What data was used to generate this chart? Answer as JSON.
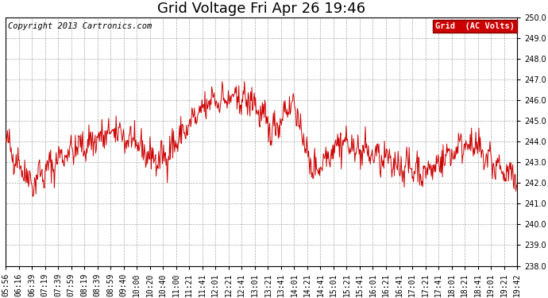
{
  "title": "Grid Voltage Fri Apr 26 19:46",
  "copyright": "Copyright 2013 Cartronics.com",
  "legend_label": "Grid  (AC Volts)",
  "legend_bg": "#cc0000",
  "legend_text_color": "#ffffff",
  "line_color": "#cc0000",
  "bg_color": "#ffffff",
  "grid_color": "#aaaaaa",
  "ylim": [
    238.0,
    250.0
  ],
  "yticks": [
    238.0,
    239.0,
    240.0,
    241.0,
    242.0,
    243.0,
    244.0,
    245.0,
    246.0,
    247.0,
    248.0,
    249.0,
    250.0
  ],
  "xtick_labels": [
    "05:56",
    "06:16",
    "06:39",
    "07:19",
    "07:39",
    "07:59",
    "08:19",
    "08:39",
    "08:59",
    "09:40",
    "10:00",
    "10:20",
    "10:40",
    "11:00",
    "11:21",
    "11:41",
    "12:01",
    "12:21",
    "12:41",
    "13:01",
    "13:21",
    "13:41",
    "14:01",
    "14:21",
    "14:41",
    "15:01",
    "15:21",
    "15:41",
    "16:01",
    "16:21",
    "16:41",
    "17:01",
    "17:21",
    "17:41",
    "18:01",
    "18:21",
    "18:41",
    "19:01",
    "19:21",
    "19:42"
  ],
  "title_fontsize": 13,
  "tick_fontsize": 7,
  "copyright_fontsize": 7.5,
  "legend_fontsize": 7.5,
  "line_width": 0.7
}
